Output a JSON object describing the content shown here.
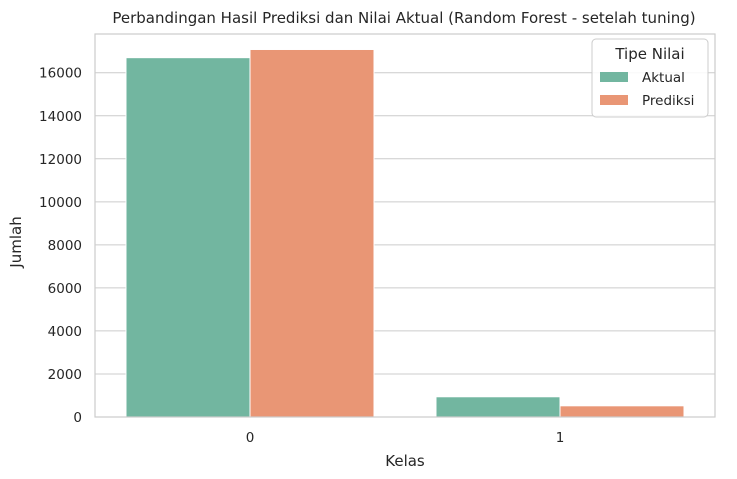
{
  "chart_data": {
    "type": "bar",
    "title": "Perbandingan Hasil Prediksi dan Nilai Aktual (Random Forest - setelah tuning)",
    "xlabel": "Kelas",
    "ylabel": "Jumlah",
    "categories": [
      "0",
      "1"
    ],
    "series": [
      {
        "name": "Aktual",
        "values": [
          16700,
          940
        ],
        "color": "#72b6a0"
      },
      {
        "name": "Prediksi",
        "values": [
          17080,
          520
        ],
        "color": "#e99675"
      }
    ],
    "ylim": [
      0,
      17800
    ],
    "yticks": [
      0,
      2000,
      4000,
      6000,
      8000,
      10000,
      12000,
      14000,
      16000
    ],
    "grid": true,
    "legend": {
      "title": "Tipe Nilai",
      "position": "top-right"
    }
  }
}
